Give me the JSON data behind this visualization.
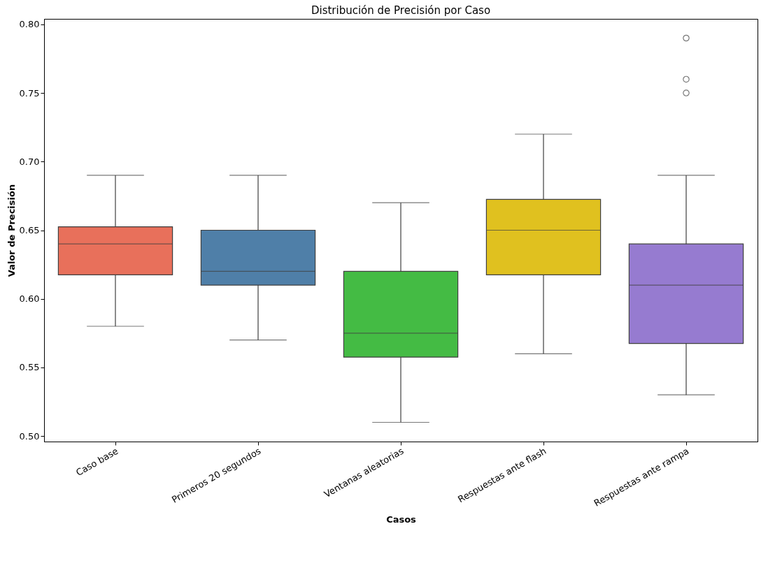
{
  "chart_data": {
    "type": "box",
    "title": "Distribución de Precisión por Caso",
    "xlabel": "Casos",
    "ylabel": "Valor de Precisión",
    "categories": [
      "Caso base",
      "Primeros 20 segundos",
      "Ventanas aleatorias",
      "Respuestas ante flash",
      "Respuestas ante rampa"
    ],
    "colors": [
      "#e8705b",
      "#4f7fa8",
      "#44bb44",
      "#e0c11f",
      "#967bd0"
    ],
    "boxes": [
      {
        "low": 0.58,
        "q1": 0.6175,
        "median": 0.64,
        "q3": 0.6525,
        "high": 0.69
      },
      {
        "low": 0.57,
        "q1": 0.61,
        "median": 0.62,
        "q3": 0.65,
        "high": 0.69
      },
      {
        "low": 0.51,
        "q1": 0.5575,
        "median": 0.575,
        "q3": 0.62,
        "high": 0.67
      },
      {
        "low": 0.56,
        "q1": 0.6175,
        "median": 0.65,
        "q3": 0.6725,
        "high": 0.72
      },
      {
        "low": 0.53,
        "q1": 0.5675,
        "median": 0.61,
        "q3": 0.64,
        "high": 0.69,
        "outliers": [
          0.79,
          0.76,
          0.75
        ]
      }
    ],
    "ylim": [
      0.496,
      0.804
    ],
    "yticks": [
      {
        "value": 0.5,
        "label": "0.50"
      },
      {
        "value": 0.55,
        "label": "0.55"
      },
      {
        "value": 0.6,
        "label": "0.60"
      },
      {
        "value": 0.65,
        "label": "0.65"
      },
      {
        "value": 0.7,
        "label": "0.70"
      },
      {
        "value": 0.75,
        "label": "0.75"
      },
      {
        "value": 0.8,
        "label": "0.80"
      }
    ],
    "grid": false
  }
}
